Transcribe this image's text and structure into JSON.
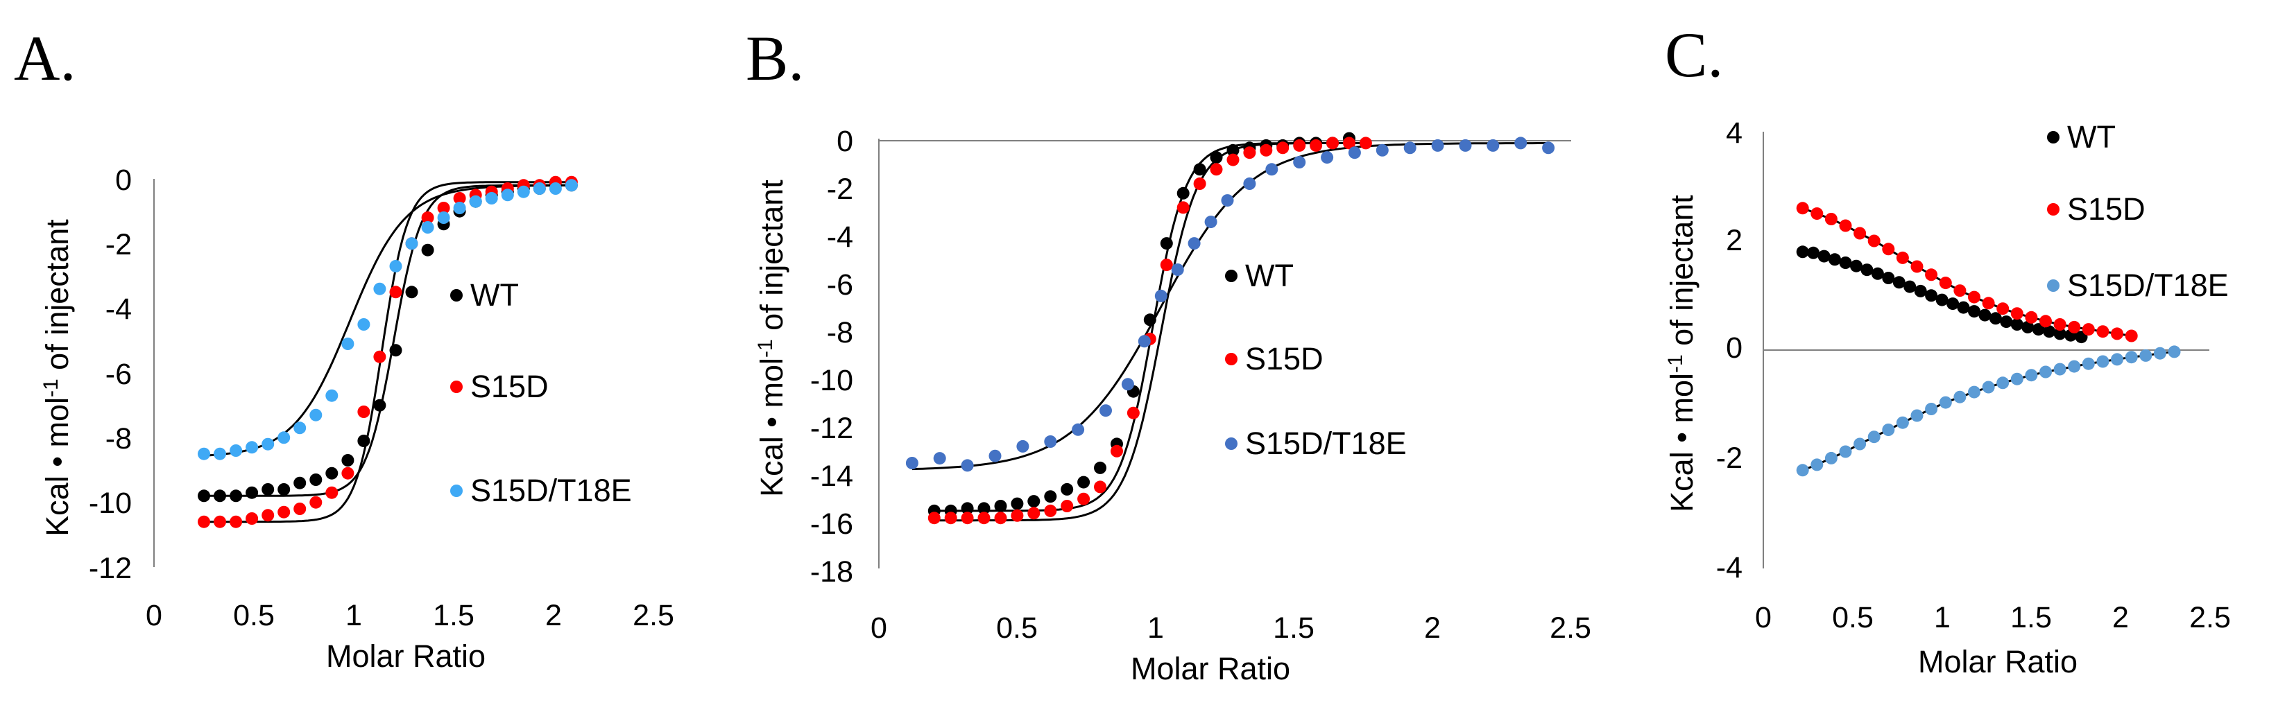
{
  "colors": {
    "WT": "#000000",
    "S15D": "#ff0000",
    "S15D_T18E_A": "#3fa9f5",
    "S15D_T18E_B": "#4472c4",
    "S15D_T18E_C": "#5b9bd5",
    "fit_line": "#000000",
    "axis": "#7f7f7f"
  },
  "chart_data": [
    {
      "type": "scatter",
      "panel": "A.",
      "xlabel": "Molar Ratio",
      "ylabel": "Kcal • mol",
      "ylabel_sup": "-1",
      "ylabel_tail": " of injectant",
      "xlim": [
        0,
        2.5
      ],
      "ylim": [
        -12,
        0
      ],
      "xticks": [
        0,
        0.5,
        1,
        1.5,
        2,
        2.5
      ],
      "xtick_labels": [
        "0",
        "0.5",
        "1",
        "1.5",
        "2",
        "2.5"
      ],
      "yticks": [
        0,
        -2,
        -4,
        -6,
        -8,
        -10,
        -12
      ],
      "ytick_labels": [
        "0",
        "-2",
        "-4",
        "-6",
        "-8",
        "-10",
        "-12"
      ],
      "legend": [
        "WT",
        "S15D",
        "S15D/T18E"
      ],
      "series": [
        {
          "name": "WT",
          "color_key": "WT",
          "x": [
            0.25,
            0.33,
            0.41,
            0.49,
            0.57,
            0.65,
            0.73,
            0.81,
            0.89,
            0.97,
            1.05,
            1.13,
            1.21,
            1.29,
            1.37,
            1.45,
            1.53,
            1.61,
            1.69,
            1.77,
            1.85,
            1.93,
            2.01,
            2.09
          ],
          "y": [
            -9.8,
            -9.8,
            -9.8,
            -9.7,
            -9.6,
            -9.6,
            -9.4,
            -9.3,
            -9.1,
            -8.7,
            -8.1,
            -7.0,
            -5.3,
            -3.5,
            -2.2,
            -1.4,
            -1.0,
            -0.7,
            -0.5,
            -0.4,
            -0.3,
            -0.3,
            -0.2,
            -0.2
          ]
        },
        {
          "name": "S15D",
          "color_key": "S15D",
          "x": [
            0.25,
            0.33,
            0.41,
            0.49,
            0.57,
            0.65,
            0.73,
            0.81,
            0.89,
            0.97,
            1.05,
            1.13,
            1.21,
            1.29,
            1.37,
            1.45,
            1.53,
            1.61,
            1.69,
            1.77,
            1.85,
            1.93,
            2.01,
            2.09
          ],
          "y": [
            -10.6,
            -10.6,
            -10.6,
            -10.5,
            -10.4,
            -10.3,
            -10.2,
            -10.0,
            -9.7,
            -9.1,
            -7.2,
            -5.5,
            -3.5,
            -2.0,
            -1.2,
            -0.9,
            -0.6,
            -0.5,
            -0.4,
            -0.3,
            -0.2,
            -0.2,
            -0.1,
            -0.1
          ]
        },
        {
          "name": "S15D/T18E",
          "color_key": "S15D_T18E_A",
          "x": [
            0.25,
            0.33,
            0.41,
            0.49,
            0.57,
            0.65,
            0.73,
            0.81,
            0.89,
            0.97,
            1.05,
            1.13,
            1.21,
            1.29,
            1.37,
            1.45,
            1.53,
            1.61,
            1.69,
            1.77,
            1.85,
            1.93,
            2.01,
            2.09
          ],
          "y": [
            -8.5,
            -8.5,
            -8.4,
            -8.3,
            -8.2,
            -8.0,
            -7.7,
            -7.3,
            -6.7,
            -5.1,
            -4.5,
            -3.4,
            -2.7,
            -2.0,
            -1.5,
            -1.2,
            -0.9,
            -0.7,
            -0.6,
            -0.5,
            -0.4,
            -0.3,
            -0.3,
            -0.2
          ]
        }
      ],
      "fits": [
        {
          "name": "WT",
          "x_mid": 1.2,
          "width": 0.07,
          "y_low": -9.8,
          "y_high": -0.2
        },
        {
          "name": "S15D",
          "x_mid": 1.14,
          "width": 0.065,
          "y_low": -10.6,
          "y_high": -0.1
        },
        {
          "name": "S15D/T18E",
          "x_mid": 0.98,
          "width": 0.14,
          "y_low": -8.6,
          "y_high": -0.2
        }
      ]
    },
    {
      "type": "scatter",
      "panel": "B.",
      "xlabel": "Molar Ratio",
      "ylabel": "Kcal • mol",
      "ylabel_sup": "-1",
      "ylabel_tail": " of injectant",
      "xlim": [
        0,
        2.5
      ],
      "ylim": [
        -18,
        0
      ],
      "xticks": [
        0,
        0.5,
        1,
        1.5,
        2,
        2.5
      ],
      "xtick_labels": [
        "0",
        "0.5",
        "1",
        "1.5",
        "2",
        "2.5"
      ],
      "yticks": [
        0,
        -2,
        -4,
        -6,
        -8,
        -10,
        -12,
        -14,
        -16,
        -18
      ],
      "ytick_labels": [
        "0",
        "-2",
        "-4",
        "-6",
        "-8",
        "-10",
        "-12",
        "-14",
        "-16",
        "-18"
      ],
      "legend": [
        "WT",
        "S15D",
        "S15D/T18E"
      ],
      "series": [
        {
          "name": "WT",
          "color_key": "WT",
          "x": [
            0.2,
            0.26,
            0.32,
            0.38,
            0.44,
            0.5,
            0.56,
            0.62,
            0.68,
            0.74,
            0.8,
            0.86,
            0.92,
            0.98,
            1.04,
            1.1,
            1.16,
            1.22,
            1.28,
            1.34,
            1.4,
            1.46,
            1.52,
            1.58,
            1.64,
            1.7
          ],
          "y": [
            -15.5,
            -15.5,
            -15.4,
            -15.4,
            -15.3,
            -15.2,
            -15.1,
            -14.9,
            -14.6,
            -14.3,
            -13.7,
            -12.7,
            -10.5,
            -7.5,
            -4.3,
            -2.2,
            -1.2,
            -0.7,
            -0.4,
            -0.3,
            -0.2,
            -0.2,
            -0.1,
            -0.1,
            -0.1,
            0.1
          ]
        },
        {
          "name": "S15D",
          "color_key": "S15D",
          "x": [
            0.2,
            0.26,
            0.32,
            0.38,
            0.44,
            0.5,
            0.56,
            0.62,
            0.68,
            0.74,
            0.8,
            0.86,
            0.92,
            0.98,
            1.04,
            1.1,
            1.16,
            1.22,
            1.28,
            1.34,
            1.4,
            1.46,
            1.52,
            1.58,
            1.64,
            1.7,
            1.76
          ],
          "y": [
            -15.8,
            -15.8,
            -15.8,
            -15.8,
            -15.8,
            -15.7,
            -15.6,
            -15.5,
            -15.3,
            -15.0,
            -14.5,
            -13.0,
            -11.4,
            -8.3,
            -5.2,
            -2.8,
            -1.8,
            -1.2,
            -0.8,
            -0.5,
            -0.4,
            -0.3,
            -0.2,
            -0.2,
            -0.1,
            -0.1,
            -0.1
          ]
        },
        {
          "name": "S15D/T18E",
          "color_key": "S15D_T18E_B",
          "x": [
            0.12,
            0.22,
            0.32,
            0.42,
            0.52,
            0.62,
            0.72,
            0.82,
            0.9,
            0.96,
            1.02,
            1.08,
            1.14,
            1.2,
            1.26,
            1.34,
            1.42,
            1.52,
            1.62,
            1.72,
            1.82,
            1.92,
            2.02,
            2.12,
            2.22,
            2.32,
            2.42
          ],
          "y": [
            -13.5,
            -13.3,
            -13.6,
            -13.2,
            -12.8,
            -12.6,
            -12.1,
            -11.3,
            -10.2,
            -8.4,
            -6.5,
            -5.4,
            -4.3,
            -3.4,
            -2.5,
            -1.8,
            -1.2,
            -0.9,
            -0.7,
            -0.5,
            -0.4,
            -0.3,
            -0.2,
            -0.2,
            -0.2,
            -0.1,
            -0.3
          ]
        }
      ],
      "fits": [
        {
          "name": "WT",
          "x_mid": 0.99,
          "width": 0.06,
          "y_low": -15.5,
          "y_high": -0.1
        },
        {
          "name": "S15D",
          "x_mid": 1.02,
          "width": 0.065,
          "y_low": -15.9,
          "y_high": -0.1
        },
        {
          "name": "S15D/T18E",
          "x_mid": 1.02,
          "width": 0.16,
          "y_low": -13.8,
          "y_high": -0.1
        }
      ]
    },
    {
      "type": "scatter",
      "panel": "C.",
      "xlabel": "Molar Ratio",
      "ylabel": "Kcal • mol",
      "ylabel_sup": "-1",
      "ylabel_tail": " of injectant",
      "xlim": [
        0,
        2.5
      ],
      "ylim": [
        -4,
        4
      ],
      "xticks": [
        0,
        0.5,
        1,
        1.5,
        2,
        2.5
      ],
      "xtick_labels": [
        "0",
        "0.5",
        "1",
        "1.5",
        "2",
        "2.5"
      ],
      "yticks": [
        4,
        2,
        0,
        -2,
        -4
      ],
      "ytick_labels": [
        "4",
        "2",
        "0",
        "-2",
        "-4"
      ],
      "legend": [
        "WT",
        "S15D",
        "S15D/T18E"
      ],
      "series": [
        {
          "name": "WT",
          "color_key": "WT",
          "x": [
            0.22,
            0.28,
            0.34,
            0.4,
            0.46,
            0.52,
            0.58,
            0.64,
            0.7,
            0.76,
            0.82,
            0.88,
            0.94,
            1.0,
            1.06,
            1.12,
            1.18,
            1.24,
            1.3,
            1.36,
            1.42,
            1.48,
            1.54,
            1.6,
            1.66,
            1.72,
            1.78
          ],
          "y": [
            1.8,
            1.78,
            1.72,
            1.66,
            1.6,
            1.54,
            1.47,
            1.4,
            1.32,
            1.24,
            1.16,
            1.08,
            1.0,
            0.92,
            0.85,
            0.78,
            0.71,
            0.64,
            0.58,
            0.52,
            0.47,
            0.42,
            0.38,
            0.34,
            0.3,
            0.27,
            0.24
          ]
        },
        {
          "name": "S15D",
          "color_key": "S15D",
          "x": [
            0.22,
            0.3,
            0.38,
            0.46,
            0.54,
            0.62,
            0.7,
            0.78,
            0.86,
            0.94,
            1.02,
            1.1,
            1.18,
            1.26,
            1.34,
            1.42,
            1.5,
            1.58,
            1.66,
            1.74,
            1.82,
            1.9,
            1.98,
            2.06
          ],
          "y": [
            2.6,
            2.5,
            2.4,
            2.28,
            2.14,
            2.0,
            1.85,
            1.69,
            1.53,
            1.38,
            1.23,
            1.09,
            0.97,
            0.86,
            0.76,
            0.67,
            0.6,
            0.53,
            0.47,
            0.42,
            0.38,
            0.34,
            0.3,
            0.26
          ]
        },
        {
          "name": "S15D/T18E",
          "color_key": "S15D_T18E_C",
          "x": [
            0.22,
            0.3,
            0.38,
            0.46,
            0.54,
            0.62,
            0.7,
            0.78,
            0.86,
            0.94,
            1.02,
            1.1,
            1.18,
            1.26,
            1.34,
            1.42,
            1.5,
            1.58,
            1.66,
            1.74,
            1.82,
            1.9,
            1.98,
            2.06,
            2.14,
            2.22,
            2.3
          ],
          "y": [
            -2.2,
            -2.1,
            -1.98,
            -1.86,
            -1.72,
            -1.59,
            -1.46,
            -1.33,
            -1.2,
            -1.08,
            -0.96,
            -0.86,
            -0.77,
            -0.68,
            -0.6,
            -0.53,
            -0.46,
            -0.4,
            -0.35,
            -0.3,
            -0.25,
            -0.21,
            -0.17,
            -0.13,
            -0.1,
            -0.06,
            -0.03
          ]
        }
      ]
    }
  ]
}
